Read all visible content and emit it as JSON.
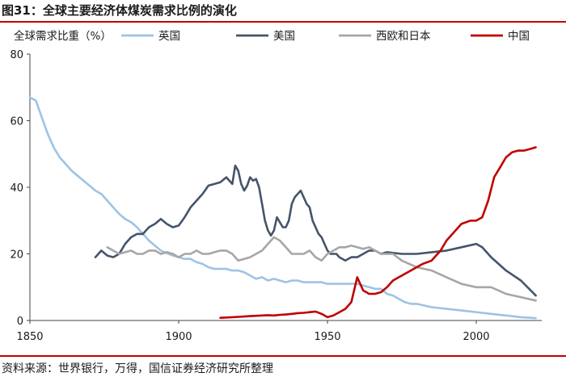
{
  "title": "图31：全球主要经济体煤炭需求比例的演化",
  "source": "资料来源：世界银行，万得，国信证券经济研究所整理",
  "chart_data": {
    "type": "line",
    "title": "图31：全球主要经济体煤炭需求比例的演化",
    "ylabel": "全球需求比重（%）",
    "xlabel": "",
    "xlim": [
      1850,
      2022
    ],
    "ylim": [
      0,
      80
    ],
    "xticks": [
      1850,
      1900,
      1950,
      2000
    ],
    "yticks": [
      0,
      20,
      40,
      60,
      80
    ],
    "grid": false,
    "legend_position": "top",
    "series": [
      {
        "name": "英国",
        "color": "#9dc3e6",
        "x": [
          1850,
          1852,
          1854,
          1856,
          1858,
          1860,
          1862,
          1864,
          1866,
          1868,
          1870,
          1872,
          1874,
          1876,
          1878,
          1880,
          1882,
          1884,
          1886,
          1888,
          1890,
          1892,
          1894,
          1896,
          1898,
          1900,
          1902,
          1904,
          1906,
          1908,
          1910,
          1912,
          1914,
          1916,
          1918,
          1920,
          1922,
          1924,
          1926,
          1928,
          1930,
          1932,
          1934,
          1936,
          1938,
          1940,
          1942,
          1944,
          1946,
          1948,
          1950,
          1952,
          1954,
          1956,
          1958,
          1960,
          1962,
          1964,
          1966,
          1968,
          1970,
          1972,
          1974,
          1976,
          1978,
          1980,
          1985,
          1990,
          1995,
          2000,
          2005,
          2010,
          2015,
          2020
        ],
        "y": [
          67,
          66,
          61,
          56,
          52,
          49,
          47,
          45,
          43.5,
          42,
          40.5,
          39,
          38,
          36,
          34,
          32,
          30.5,
          29.5,
          28,
          26,
          24,
          22.5,
          21,
          20.2,
          19.5,
          19,
          18.5,
          18.5,
          17.5,
          17,
          16,
          15.5,
          15.5,
          15.5,
          15,
          15,
          14.5,
          13.5,
          12.5,
          13,
          12,
          12.5,
          12,
          11.5,
          12,
          12,
          11.5,
          11.5,
          11.5,
          11.5,
          11,
          11,
          11,
          11,
          11,
          11,
          10.5,
          10,
          9.5,
          9.5,
          8,
          7.5,
          6.5,
          5.5,
          5,
          5,
          4,
          3.5,
          3,
          2.5,
          2,
          1.5,
          1,
          0.7
        ]
      },
      {
        "name": "美国",
        "color": "#44546a",
        "x": [
          1872,
          1874,
          1876,
          1878,
          1880,
          1882,
          1884,
          1886,
          1888,
          1890,
          1892,
          1894,
          1896,
          1898,
          1900,
          1902,
          1904,
          1906,
          1908,
          1910,
          1912,
          1914,
          1916,
          1918,
          1919,
          1920,
          1921,
          1922,
          1923,
          1924,
          1925,
          1926,
          1927,
          1928,
          1929,
          1930,
          1931,
          1932,
          1933,
          1934,
          1935,
          1936,
          1937,
          1938,
          1939,
          1940,
          1941,
          1942,
          1943,
          1944,
          1945,
          1946,
          1947,
          1948,
          1949,
          1950,
          1951,
          1952,
          1953,
          1954,
          1956,
          1958,
          1960,
          1962,
          1964,
          1966,
          1968,
          1970,
          1975,
          1980,
          1985,
          1990,
          1995,
          2000,
          2002,
          2005,
          2010,
          2015,
          2020
        ],
        "y": [
          19,
          21,
          19.5,
          19,
          20,
          23,
          25,
          26,
          26,
          28,
          29,
          30.5,
          29,
          28,
          28.5,
          31,
          34,
          36,
          38,
          40.5,
          41,
          41.5,
          43,
          41,
          46.5,
          45,
          41,
          39,
          40.5,
          43,
          42,
          42.5,
          40,
          35,
          30,
          27,
          25.5,
          27,
          31,
          29.5,
          28,
          28,
          30,
          35,
          37,
          38,
          39,
          37,
          35,
          34,
          30,
          28,
          26,
          25,
          23,
          21,
          20,
          20,
          20,
          19,
          18,
          19,
          19,
          20,
          21,
          21,
          20,
          20.5,
          20,
          20,
          20.5,
          21,
          22,
          23,
          22,
          19,
          15,
          12,
          7.5
        ]
      },
      {
        "name": "西欧和日本",
        "color": "#a6a6a6",
        "x": [
          1876,
          1878,
          1880,
          1882,
          1884,
          1886,
          1888,
          1890,
          1892,
          1894,
          1896,
          1898,
          1900,
          1902,
          1904,
          1906,
          1908,
          1910,
          1912,
          1914,
          1916,
          1918,
          1920,
          1922,
          1924,
          1926,
          1928,
          1930,
          1932,
          1934,
          1936,
          1938,
          1940,
          1942,
          1944,
          1946,
          1948,
          1950,
          1952,
          1954,
          1956,
          1958,
          1960,
          1962,
          1964,
          1966,
          1968,
          1970,
          1972,
          1975,
          1980,
          1985,
          1990,
          1995,
          2000,
          2005,
          2010,
          2015,
          2020
        ],
        "y": [
          22,
          21,
          20,
          20.5,
          21,
          20,
          20,
          21,
          21,
          20,
          20.5,
          20,
          19,
          20,
          20,
          21,
          20,
          20,
          20.5,
          21,
          21,
          20,
          18,
          18.5,
          19,
          20,
          21,
          23,
          25,
          24,
          22,
          20,
          20,
          20,
          21,
          19,
          18,
          20,
          21,
          22,
          22,
          22.5,
          22,
          21.5,
          22,
          21,
          20,
          20,
          20,
          18,
          16,
          15,
          13,
          11,
          10,
          10,
          8,
          7,
          6
        ]
      },
      {
        "name": "中国",
        "color": "#c00000",
        "x": [
          1914,
          1916,
          1918,
          1920,
          1922,
          1924,
          1926,
          1928,
          1930,
          1932,
          1934,
          1936,
          1938,
          1940,
          1942,
          1944,
          1946,
          1948,
          1950,
          1952,
          1954,
          1956,
          1958,
          1960,
          1961,
          1962,
          1963,
          1964,
          1966,
          1968,
          1970,
          1972,
          1974,
          1976,
          1978,
          1980,
          1982,
          1985,
          1988,
          1990,
          1992,
          1995,
          1998,
          2000,
          2002,
          2004,
          2006,
          2008,
          2010,
          2012,
          2014,
          2016,
          2018,
          2020
        ],
        "y": [
          0.8,
          0.9,
          1.0,
          1.1,
          1.2,
          1.3,
          1.4,
          1.5,
          1.6,
          1.5,
          1.7,
          1.8,
          2.0,
          2.2,
          2.3,
          2.5,
          2.7,
          2.0,
          1.0,
          1.5,
          2.5,
          3.5,
          5.5,
          13,
          11,
          9,
          8.5,
          8,
          8,
          8.5,
          10,
          12,
          13,
          14,
          15,
          16,
          17,
          18,
          21,
          24,
          26,
          29,
          30,
          30,
          31,
          36,
          43,
          46,
          49,
          50.5,
          51,
          51,
          51.5,
          52
        ]
      }
    ]
  }
}
